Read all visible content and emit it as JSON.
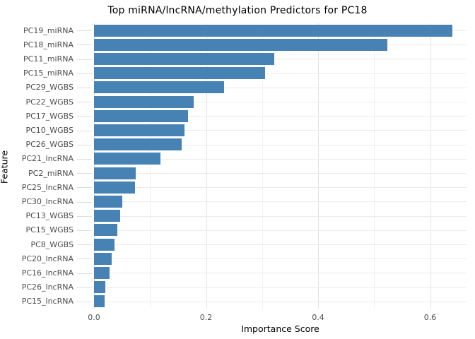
{
  "chart_data": {
    "type": "bar",
    "orientation": "horizontal",
    "title": "Top miRNA/lncRNA/methylation Predictors for PC18",
    "xlabel": "Importance Score",
    "ylabel": "Feature",
    "categories": [
      "PC19_miRNA",
      "PC18_miRNA",
      "PC11_miRNA",
      "PC15_miRNA",
      "PC29_WGBS",
      "PC22_WGBS",
      "PC17_WGBS",
      "PC10_WGBS",
      "PC26_WGBS",
      "PC21_lncRNA",
      "PC2_miRNA",
      "PC25_lncRNA",
      "PC30_lncRNA",
      "PC13_WGBS",
      "PC15_WGBS",
      "PC8_WGBS",
      "PC20_lncRNA",
      "PC16_lncRNA",
      "PC26_lncRNA",
      "PC15_lncRNA"
    ],
    "values": [
      0.64,
      0.523,
      0.322,
      0.305,
      0.232,
      0.178,
      0.168,
      0.161,
      0.157,
      0.119,
      0.074,
      0.073,
      0.05,
      0.047,
      0.042,
      0.037,
      0.032,
      0.028,
      0.02,
      0.019
    ],
    "xlim": [
      0,
      0.665
    ],
    "x_major_ticks": [
      0.0,
      0.2,
      0.4,
      0.6
    ],
    "x_minor_ticks": [
      0.1,
      0.3,
      0.5
    ],
    "grid": true,
    "legend": false,
    "bar_color": "#4682B4",
    "background_color": "#ffffff",
    "major_grid_color": "#e3e3e3",
    "minor_grid_color": "#f2f2f2",
    "row_grid_color": "#ebebeb"
  }
}
